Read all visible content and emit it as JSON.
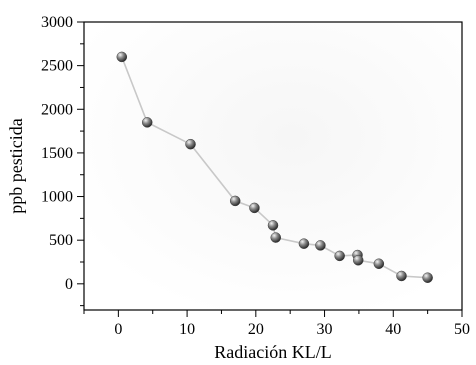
{
  "chart_data": {
    "type": "line",
    "xlabel": "Radiación KL/L",
    "ylabel": "ppb pesticida",
    "xlim": [
      -5,
      50
    ],
    "ylim": [
      -300,
      3000
    ],
    "xticks": [
      0,
      10,
      20,
      30,
      40,
      50
    ],
    "yticks": [
      0,
      500,
      1000,
      1500,
      2000,
      2500,
      3000
    ],
    "grid": false,
    "series": [
      {
        "x": [
          0.5,
          4.2,
          10.5,
          17.0,
          19.8,
          22.5,
          22.9,
          27.0,
          29.4,
          32.2,
          34.8,
          34.9,
          37.9,
          41.2,
          45.0
        ],
        "y": [
          2600,
          1850,
          1600,
          950,
          870,
          670,
          530,
          460,
          440,
          320,
          330,
          270,
          230,
          90,
          70
        ]
      }
    ],
    "colors": {
      "line": "#c8c8c8",
      "marker": "#555555"
    }
  }
}
